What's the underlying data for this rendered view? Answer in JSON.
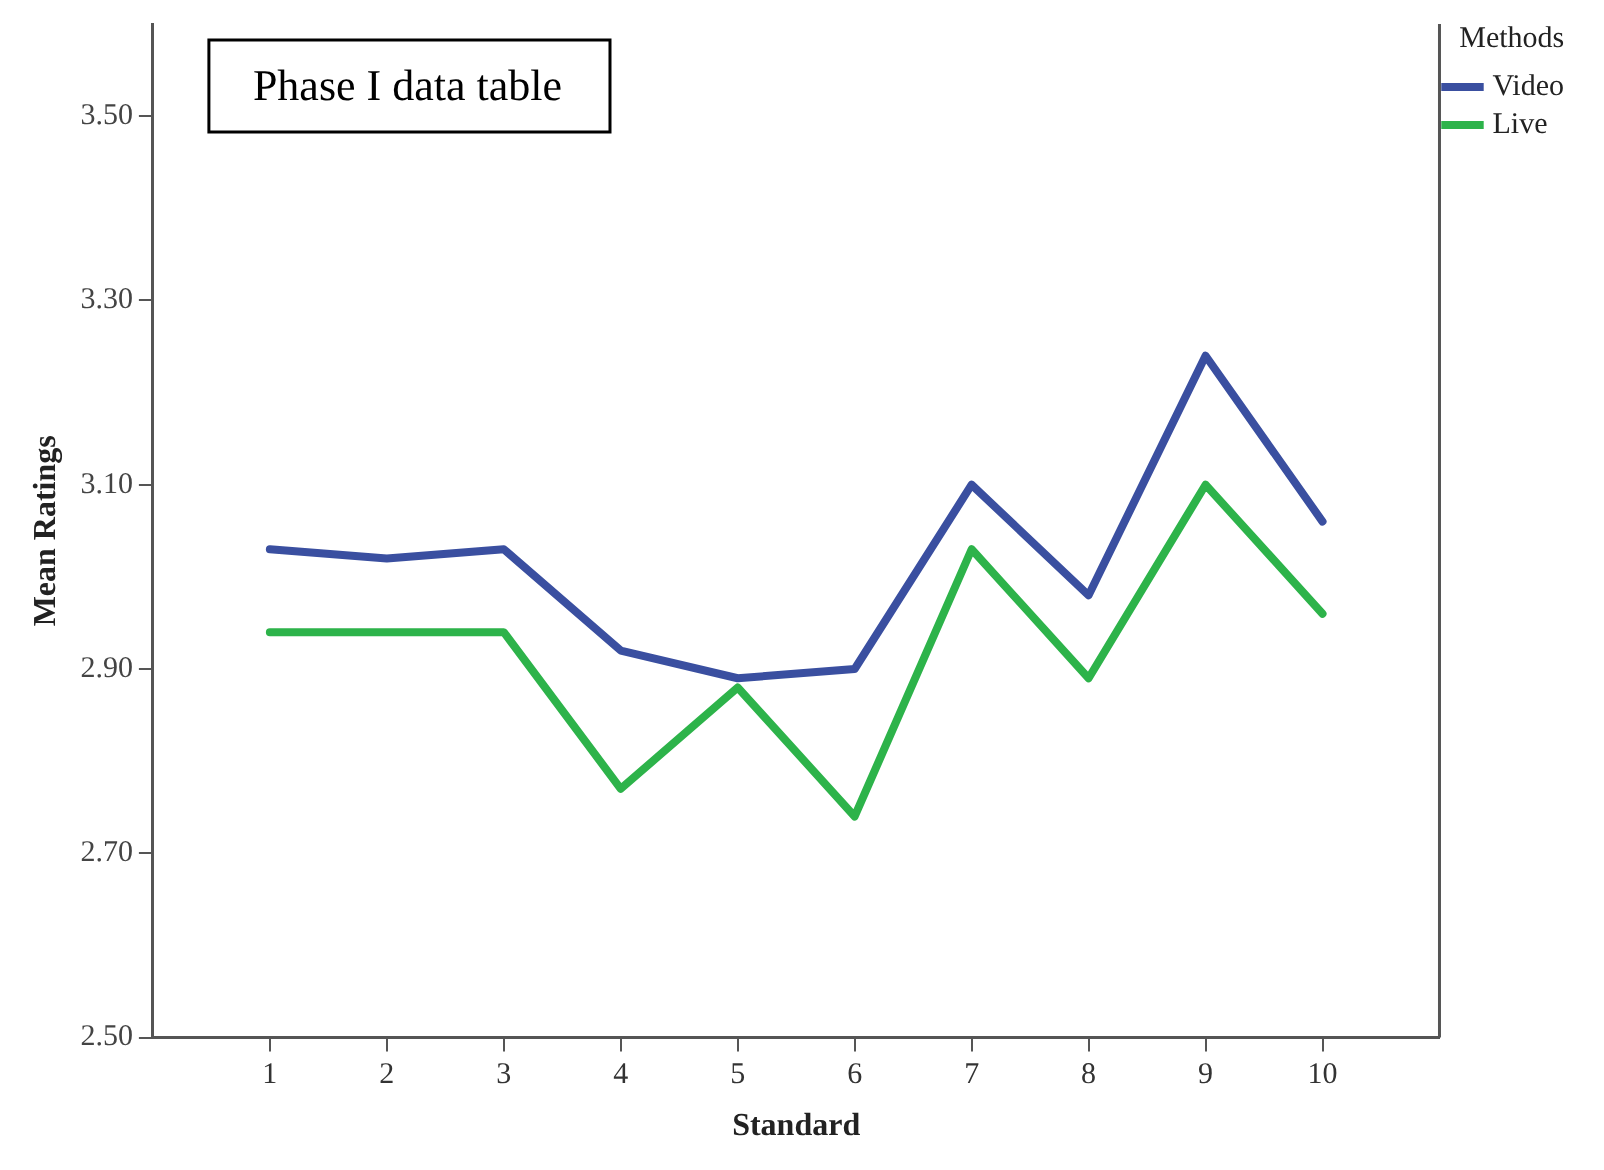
{
  "chart_data": {
    "type": "line",
    "xlabel": "Standard",
    "ylabel": "Mean Ratings",
    "legend_title": "Methods",
    "annotations": [
      "Phase I data table"
    ],
    "x": [
      1,
      2,
      3,
      4,
      5,
      6,
      7,
      8,
      9,
      10
    ],
    "xlim": [
      0,
      11
    ],
    "xticks": [
      1,
      2,
      3,
      4,
      5,
      6,
      7,
      8,
      9,
      10
    ],
    "ylim": [
      2.5,
      3.6
    ],
    "yticks": [
      {
        "value": 2.5,
        "label": "2.50"
      },
      {
        "value": 2.7,
        "label": "2.70"
      },
      {
        "value": 2.9,
        "label": "2.90"
      },
      {
        "value": 3.1,
        "label": "3.10"
      },
      {
        "value": 3.3,
        "label": "3.30"
      },
      {
        "value": 3.5,
        "label": "3.50"
      }
    ],
    "series": [
      {
        "name": "Video",
        "color": "#3a4fa0",
        "values": [
          3.03,
          3.02,
          3.03,
          2.92,
          2.89,
          2.9,
          3.1,
          2.98,
          3.24,
          3.06
        ]
      },
      {
        "name": "Live",
        "color": "#2db34a",
        "values": [
          2.94,
          2.94,
          2.94,
          2.77,
          2.88,
          2.74,
          3.03,
          2.89,
          3.1,
          2.96
        ]
      }
    ],
    "grid": false,
    "legend": "top right",
    "marker": "none",
    "line_style": "solid"
  }
}
